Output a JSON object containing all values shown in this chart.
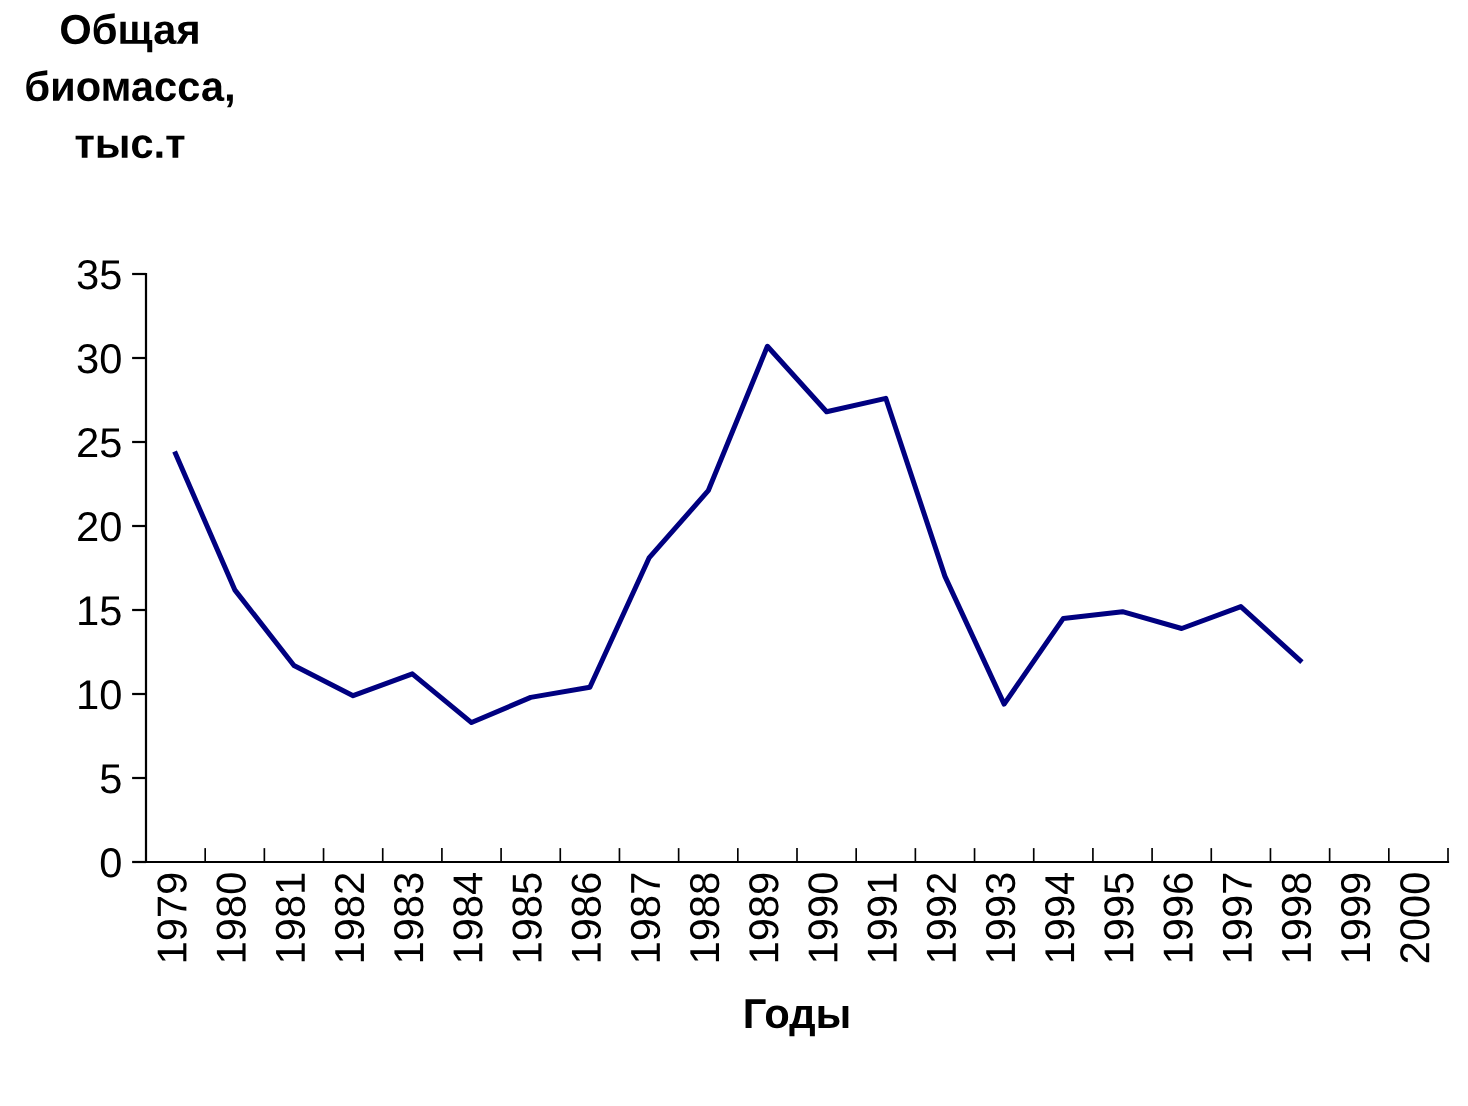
{
  "chart_data": {
    "type": "line",
    "ylabel": "Общая\nбиомасса,\nтыс.т",
    "xlabel": "Годы",
    "categories": [
      "1979",
      "1980",
      "1981",
      "1982",
      "1983",
      "1984",
      "1985",
      "1986",
      "1987",
      "1988",
      "1989",
      "1990",
      "1991",
      "1992",
      "1993",
      "1994",
      "1995",
      "1996",
      "1997",
      "1998",
      "1999",
      "2000"
    ],
    "series": [
      {
        "color": "#000080",
        "values": [
          24.3,
          16.2,
          11.7,
          9.9,
          11.2,
          8.3,
          9.8,
          10.4,
          18.1,
          22.1,
          30.7,
          26.8,
          27.6,
          17.0,
          9.4,
          14.5,
          14.9,
          13.9,
          15.2,
          12.0,
          null,
          null
        ]
      }
    ],
    "ylim": [
      0,
      35
    ],
    "yticks": [
      0,
      5,
      10,
      15,
      20,
      25,
      30,
      35
    ],
    "grid": false,
    "legend": false,
    "marker": "none",
    "line_style": "solid"
  }
}
